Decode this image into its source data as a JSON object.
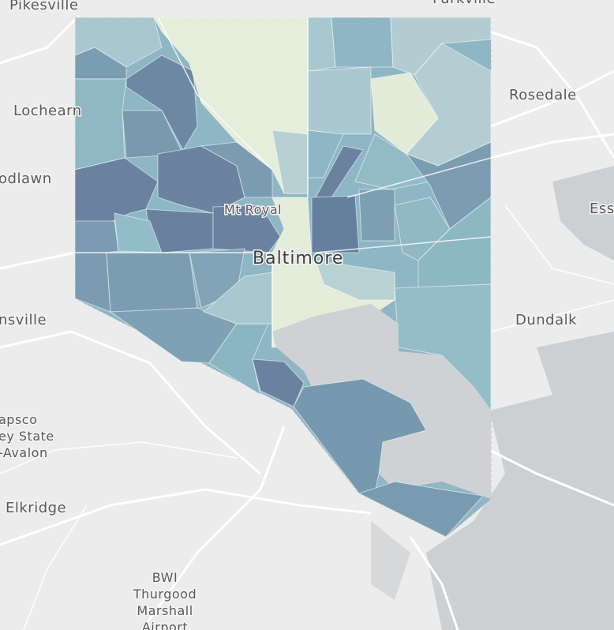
{
  "labels": {
    "pikesville": "Pikesville",
    "parkville": "Parkville",
    "lochearn": "Lochearn",
    "rosedale": "Rosedale",
    "woodlawn": "odlawn",
    "essex": "Ess",
    "mt_royal": "Mt Royal",
    "baltimore": "Baltimore",
    "catonsville": "nsville",
    "dundalk": "Dundalk",
    "patapsco_1": "apsco",
    "patapsco_2": "ey State",
    "patapsco_3": "-Avalon",
    "elkridge": "Elkridge",
    "bwi_1": "BWI",
    "bwi_2": "Thurgood",
    "bwi_3": "Marshall",
    "bwi_4": "Airport"
  }
}
